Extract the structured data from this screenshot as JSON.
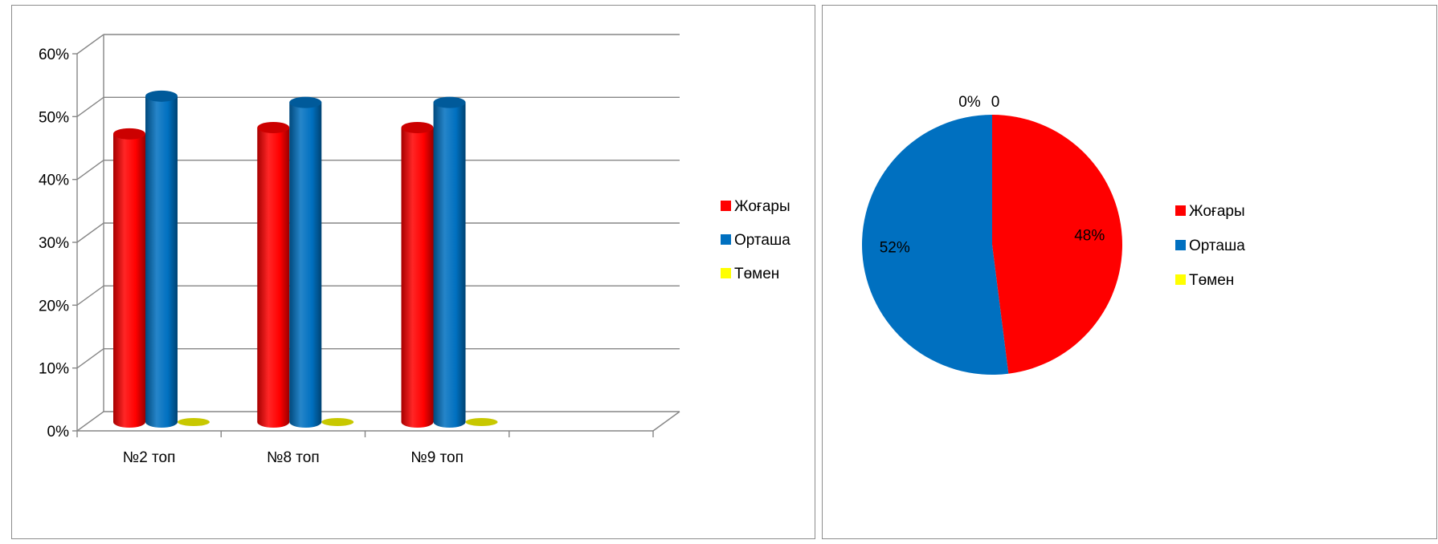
{
  "colors": {
    "Жоғары": "#ff0000",
    "Орташа": "#0070c0",
    "Төмен": "#ffff00",
    "gridline": "#868686",
    "border": "#8c8c8c"
  },
  "chart_data": [
    {
      "type": "bar",
      "style": "3d-cylinder",
      "categories": [
        "№2 топ",
        "№8 топ",
        "№9 топ"
      ],
      "series": [
        {
          "name": "Жоғары",
          "values": [
            0.47,
            0.48,
            0.48
          ],
          "color": "#ff0000"
        },
        {
          "name": "Орташа",
          "values": [
            0.53,
            0.52,
            0.52
          ],
          "color": "#0070c0"
        },
        {
          "name": "Төмен",
          "values": [
            0,
            0,
            0
          ],
          "color": "#ffff00"
        }
      ],
      "yticks": [
        "0%",
        "10%",
        "20%",
        "30%",
        "40%",
        "50%",
        "60%"
      ],
      "ylim": [
        0,
        0.6
      ],
      "grid": true,
      "legend_position": "right"
    },
    {
      "type": "pie",
      "labels": [
        "Жоғары",
        "Орташа",
        "Төмен"
      ],
      "values": [
        0.48,
        0.52,
        0
      ],
      "data_labels": [
        "48%",
        "52%",
        "0%"
      ],
      "extra_label": "0",
      "colors": [
        "#ff0000",
        "#0070c0",
        "#ffff00"
      ],
      "legend_position": "right"
    }
  ]
}
